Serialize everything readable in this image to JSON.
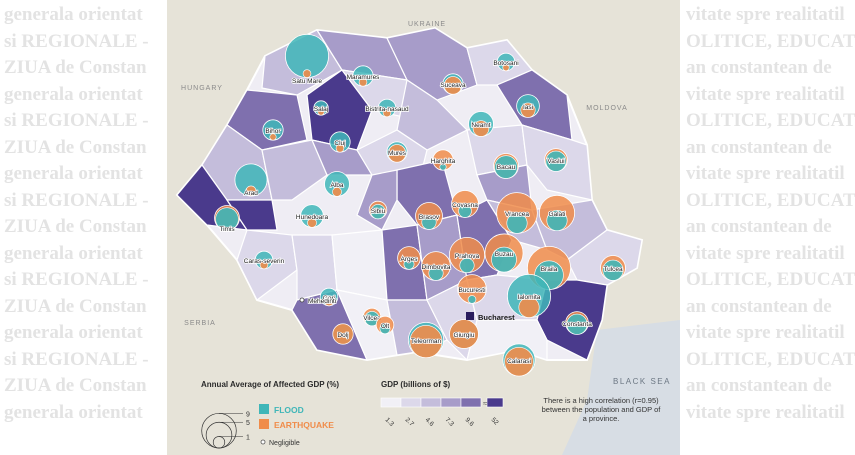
{
  "background": {
    "lines": [
      "generala orientat",
      "si REGIONALE -",
      "ZIUA de Constan",
      "generala orientat",
      "si REGIONALE -",
      "ZIUA de Constan",
      "generala orientat",
      "si REGIONALE -",
      "ZIUA de Constan",
      "generala orientat",
      "si REGIONALE -",
      "ZIUA de Constan",
      "generala orientat",
      "si REGIONALE -",
      "ZIUA de Constan",
      "generala orientat"
    ],
    "right_lines": [
      "vitate spre realitatil",
      "OLITICE, EDUCATI",
      "an constantean de",
      "vitate spre realitatil",
      "OLITICE, EDUCATI",
      "an constantean de",
      "vitate spre realitatil",
      "OLITICE, EDUCATI",
      "an constantean de",
      "vitate spre realitatil",
      "OLITICE, EDUCATI",
      "an constantean de",
      "vitate spre realitatil",
      "OLITICE, EDUCATI",
      "an constantean de",
      "vitate spre realitatil"
    ]
  },
  "map": {
    "countries": [
      "UKRAINE",
      "HUNGARY",
      "MOLDOVA",
      "SERBIA",
      "BLACK SEA"
    ],
    "capital": "Bucharest",
    "colors": {
      "flood": "#3fb6b8",
      "earthquake": "#f08c4a",
      "gdp_scale": [
        "#f1f0f6",
        "#dcd8ea",
        "#c4bddb",
        "#a79cc9",
        "#7f70ae",
        "#4a3a8c"
      ]
    },
    "counties": [
      {
        "name": "Satu Mare",
        "flood": 9,
        "eq": 0.3
      },
      {
        "name": "Maramures",
        "flood": 2,
        "eq": 0.3
      },
      {
        "name": "Botosani",
        "flood": 1.5,
        "eq": 0.2
      },
      {
        "name": "Suceava",
        "flood": 2,
        "eq": 1.5
      },
      {
        "name": "Bihor",
        "flood": 2,
        "eq": 0.2
      },
      {
        "name": "Salaj",
        "flood": 1,
        "eq": 0.2
      },
      {
        "name": "Bistrita-nasaud",
        "flood": 1.5,
        "eq": 0.3
      },
      {
        "name": "Iasi",
        "flood": 2.5,
        "eq": 1
      },
      {
        "name": "Neamt",
        "flood": 3,
        "eq": 1.2
      },
      {
        "name": "Cluj",
        "flood": 2,
        "eq": 0.3
      },
      {
        "name": "Mures",
        "flood": 2,
        "eq": 1.5
      },
      {
        "name": "Harghita",
        "flood": 0.2,
        "eq": 2
      },
      {
        "name": "Bacau",
        "flood": 2.5,
        "eq": 3
      },
      {
        "name": "Vaslui",
        "flood": 2,
        "eq": 2.5
      },
      {
        "name": "Arad",
        "flood": 5,
        "eq": 0.5
      },
      {
        "name": "Alba",
        "flood": 3,
        "eq": 0.4
      },
      {
        "name": "Covasna",
        "flood": 0.8,
        "eq": 3.5
      },
      {
        "name": "Vrancea",
        "flood": 2,
        "eq": 8
      },
      {
        "name": "Galati",
        "flood": 2,
        "eq": 6
      },
      {
        "name": "Hunedoara",
        "flood": 2.5,
        "eq": 0.4
      },
      {
        "name": "Sibiu",
        "flood": 1,
        "eq": 1.5
      },
      {
        "name": "Brasov",
        "flood": 1,
        "eq": 3.5
      },
      {
        "name": "Timis",
        "flood": 2.5,
        "eq": 3
      },
      {
        "name": "Arges",
        "flood": 0.5,
        "eq": 2.5
      },
      {
        "name": "Prahova",
        "flood": 1,
        "eq": 6
      },
      {
        "name": "Buzau",
        "flood": 3,
        "eq": 7
      },
      {
        "name": "Braila",
        "flood": 4,
        "eq": 9
      },
      {
        "name": "Tulcea",
        "flood": 2,
        "eq": 3
      },
      {
        "name": "Caras-severin",
        "flood": 1.5,
        "eq": 0.3
      },
      {
        "name": "Vilcea",
        "flood": 1,
        "eq": 1.5
      },
      {
        "name": "Dimbovita",
        "flood": 1,
        "eq": 4
      },
      {
        "name": "Gorj",
        "flood": 1.5,
        "eq": 0.5
      },
      {
        "name": "Bucuresti",
        "flood": 0.3,
        "eq": 4
      },
      {
        "name": "Ialomita",
        "flood": 9,
        "eq": 2
      },
      {
        "name": "Mehedinti",
        "flood": 0,
        "eq": 0
      },
      {
        "name": "Olt",
        "flood": 0.5,
        "eq": 1.5
      },
      {
        "name": "Constanta",
        "flood": 2,
        "eq": 2.5
      },
      {
        "name": "Dolj",
        "flood": 2,
        "eq": 2
      },
      {
        "name": "Teleorman",
        "flood": 6,
        "eq": 5
      },
      {
        "name": "Giurgiu",
        "flood": 4,
        "eq": 4
      },
      {
        "name": "Calarasi",
        "flood": 5,
        "eq": 4
      }
    ]
  },
  "legend": {
    "affected_title": "Annual Average of Affected GDP (%)",
    "size_labels": [
      "9",
      "5",
      "1"
    ],
    "size_values": [
      9,
      5,
      1
    ],
    "flood_label": "FLOOD",
    "earthquake_label": "EARTHQUAKE",
    "negligible_label": "Negligible",
    "gdp_title": "GDP (billions of $)",
    "gdp_ticks": [
      "1.3",
      "2.7",
      "4.6",
      "7.3",
      "9.6",
      "52"
    ]
  },
  "note": "There is a high correlation (r=0.95) between the population and GDP of a province."
}
